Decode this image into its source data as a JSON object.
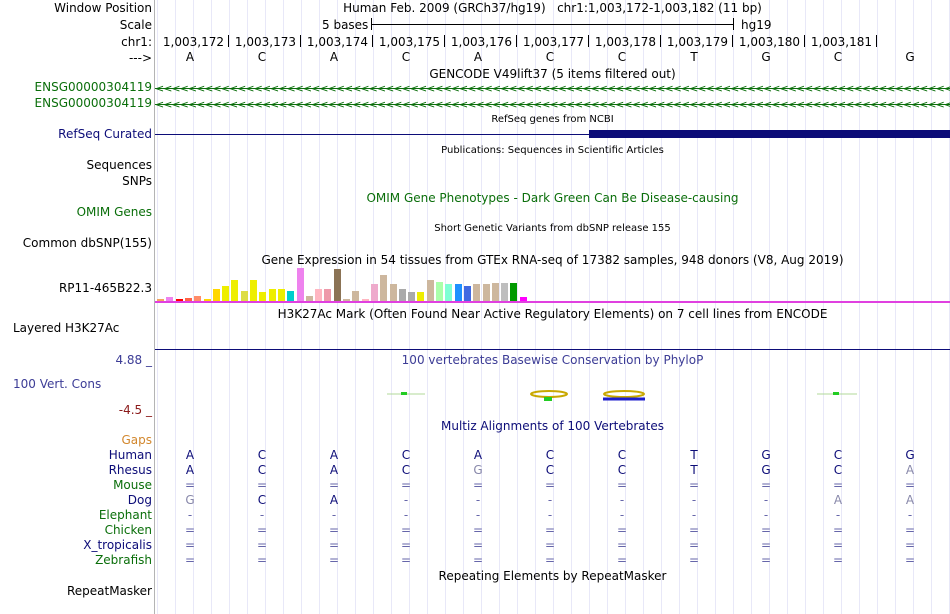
{
  "left_labels": {
    "window_position": "Window Position",
    "scale": "Scale",
    "chrom": "chr1:",
    "strand": "--->",
    "gencode1": "ENSG00000304119",
    "gencode2": "ENSG00000304119",
    "refseq": "RefSeq Curated",
    "sequences": "Sequences",
    "snps": "SNPs",
    "omim": "OMIM Genes",
    "dbsnp": "Common dbSNP(155)",
    "gtex_gene": "RP11-465B22.3",
    "h3k27ac": "Layered H3K27Ac",
    "cons_max": "4.88 _",
    "cons_label": "100 Vert. Cons",
    "cons_min": "-4.5 _",
    "gaps": "Gaps"
  },
  "colors": {
    "gencode": "#0a6e0a",
    "refseq": "#0c0c78",
    "omim": "#0a6e0a",
    "cons_label": "#3c3c96",
    "cons_min": "#8b1a1a",
    "gaps": "#d2872d",
    "species_primate": "#0c0c78",
    "species_mammal": "#0a6e0a",
    "species_other": "#0c0c78",
    "h3k27ac_line": "#e040e0",
    "accent": "#000096"
  },
  "header": {
    "assembly": "Human Feb. 2009 (GRCh37/hg19)",
    "position": "chr1:1,003,172-1,003,182 (11 bp)",
    "scale_text": "5 bases",
    "scale_db": "hg19"
  },
  "ruler_ticks": [
    "1,003,172",
    "1,003,173",
    "1,003,174",
    "1,003,175",
    "1,003,176",
    "1,003,177",
    "1,003,178",
    "1,003,179",
    "1,003,180",
    "1,003,181"
  ],
  "bases": [
    "A",
    "C",
    "A",
    "C",
    "A",
    "C",
    "C",
    "T",
    "G",
    "C",
    "G"
  ],
  "track_titles": {
    "gencode": "GENCODE V49lift37 (5 items filtered out)",
    "refseq": "RefSeq genes from NCBI",
    "publications": "Publications: Sequences in Scientific Articles",
    "omim": "OMIM Gene Phenotypes - Dark Green Can Be Disease-causing",
    "dbsnp": "Short Genetic Variants from dbSNP release 155",
    "gtex": "Gene Expression in 54 tissues from GTEx RNA-seq of 17382 samples, 948 donors (V8, Aug 2019)",
    "h3k27ac": "H3K27Ac Mark (Often Found Near Active Regulatory Elements) on 7 cell lines from ENCODE",
    "cons": "100 vertebrates Basewise Conservation by PhyloP",
    "multiz": "Multiz Alignments of 100 Vertebrates",
    "repeat": "Repeating Elements by RepeatMasker",
    "repeat_label": "RepeatMasker"
  },
  "gtex_bars": {
    "colors": [
      "#f4a460",
      "#ee82ee",
      "#ff0000",
      "#ff6347",
      "#ff8c69",
      "#ffd700",
      "#ffd700",
      "#eeee00",
      "#eeee00",
      "#dddd44",
      "#eeee00",
      "#eeee00",
      "#eeee00",
      "#eeee00",
      "#00cdcd",
      "#ee82ee",
      "#cdb79e",
      "#ffb6c1",
      "#ee99aa",
      "#8b7355",
      "#cdb79e",
      "#cdb79e",
      "#ffb6c1",
      "#eeaacc",
      "#cdb79e",
      "#cdb79e",
      "#aaaaaa",
      "#aaaaaa",
      "#eeee00",
      "#cdb79e",
      "#aaffaa",
      "#7fffd4",
      "#1e90ff",
      "#4169e1",
      "#cdb79e",
      "#cdb79e",
      "#cdb79e",
      "#bebebe",
      "#009900",
      "#ff00ff"
    ],
    "heights": [
      0.06,
      0.12,
      0.06,
      0.1,
      0.16,
      0.06,
      0.37,
      0.44,
      0.64,
      0.3,
      0.64,
      0.27,
      0.37,
      0.37,
      0.3,
      1.0,
      0.16,
      0.37,
      0.37,
      0.97,
      0.06,
      0.3,
      0.06,
      0.5,
      0.8,
      0.51,
      0.37,
      0.27,
      0.27,
      0.64,
      0.58,
      0.51,
      0.51,
      0.44,
      0.51,
      0.51,
      0.56,
      0.56,
      0.56,
      0.12
    ]
  },
  "species": [
    {
      "name": "Human",
      "bases": [
        "A",
        "C",
        "A",
        "C",
        "A",
        "C",
        "C",
        "T",
        "G",
        "C",
        "G"
      ]
    },
    {
      "name": "Rhesus",
      "bases": [
        "A",
        "C",
        "A",
        "C",
        "G",
        "C",
        "C",
        "T",
        "G",
        "C",
        "A"
      ]
    },
    {
      "name": "Mouse",
      "bases": [
        "=",
        "=",
        "=",
        "=",
        "=",
        "=",
        "=",
        "=",
        "=",
        "=",
        "="
      ]
    },
    {
      "name": "Dog",
      "bases": [
        "G",
        "C",
        "A",
        "-",
        "-",
        "-",
        "-",
        "-",
        "-",
        "A",
        "A"
      ]
    },
    {
      "name": "Elephant",
      "bases": [
        "-",
        "-",
        "-",
        "-",
        "-",
        "-",
        "-",
        "-",
        "-",
        "-",
        "-"
      ]
    },
    {
      "name": "Chicken",
      "bases": [
        "=",
        "=",
        "=",
        "=",
        "=",
        "=",
        "=",
        "=",
        "=",
        "=",
        "="
      ]
    },
    {
      "name": "X_tropicalis",
      "bases": [
        "=",
        "=",
        "=",
        "=",
        "=",
        "=",
        "=",
        "=",
        "=",
        "=",
        "="
      ]
    },
    {
      "name": "Zebrafish",
      "bases": [
        "=",
        "=",
        "=",
        "=",
        "=",
        "=",
        "=",
        "=",
        "=",
        "=",
        "="
      ]
    }
  ]
}
